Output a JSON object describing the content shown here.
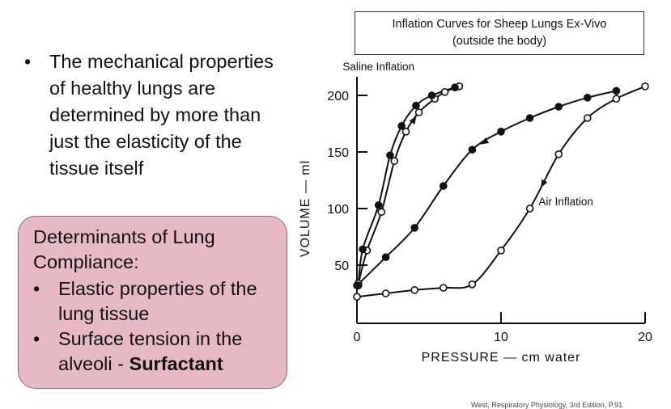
{
  "bullets": [
    "The mechanical properties of healthy lungs are determined by more than just the elasticity of the tissue itself"
  ],
  "determinants_box": {
    "title": "Determinants of Lung Compliance:",
    "items": [
      {
        "text": "Elastic properties of the lung tissue",
        "bold": ""
      },
      {
        "text": "Surface tension in the alveoli - ",
        "bold": "Surfactant"
      }
    ]
  },
  "citation": "West, Respiratory Physiology, 3rd Edition, P.91",
  "chart_data": {
    "type": "line",
    "title": "Inflation Curves for Sheep Lungs Ex-Vivo",
    "subtitle": "(outside the body)",
    "xlabel": "PRESSURE — cm water",
    "ylabel": "VOLUME — ml",
    "xlim": [
      0,
      20
    ],
    "ylim": [
      0,
      210
    ],
    "xticks": [
      0,
      10,
      20
    ],
    "yticks": [
      50,
      100,
      150,
      200
    ],
    "grid": false,
    "annotations": [
      {
        "text": "Saline Inflation",
        "x": 1.5,
        "y": 222
      },
      {
        "text": "Air Inflation",
        "x": 14.5,
        "y": 103
      }
    ],
    "series": [
      {
        "name": "",
        "group": "saline",
        "direction": "inflation",
        "marker": "open",
        "x": [
          0.1,
          0.7,
          1.7,
          2.6,
          3.4,
          4.3,
          5.4,
          6.1,
          7.1
        ],
        "y": [
          34,
          63,
          97,
          142,
          168,
          185,
          197,
          203,
          208
        ]
      },
      {
        "name": "",
        "group": "saline",
        "direction": "deflation",
        "marker": "filled",
        "x": [
          0.1,
          0.4,
          1.5,
          2.3,
          3.1,
          4.1,
          5.2,
          6.8
        ],
        "y": [
          32,
          64,
          103,
          147,
          173,
          191,
          200,
          207
        ]
      },
      {
        "name": "",
        "group": "air",
        "direction": "inflation",
        "marker": "open",
        "x": [
          0,
          2,
          4,
          6,
          8,
          10,
          12,
          14,
          16,
          18,
          20
        ],
        "y": [
          22,
          25,
          28,
          30,
          33,
          63,
          100,
          148,
          180,
          197,
          208
        ]
      },
      {
        "name": "",
        "group": "air",
        "direction": "deflation",
        "marker": "filled",
        "x": [
          0,
          2,
          4,
          6,
          8,
          10,
          12,
          14,
          16,
          18
        ],
        "y": [
          32,
          57,
          83,
          120,
          152,
          168,
          180,
          190,
          198,
          204
        ]
      }
    ]
  }
}
